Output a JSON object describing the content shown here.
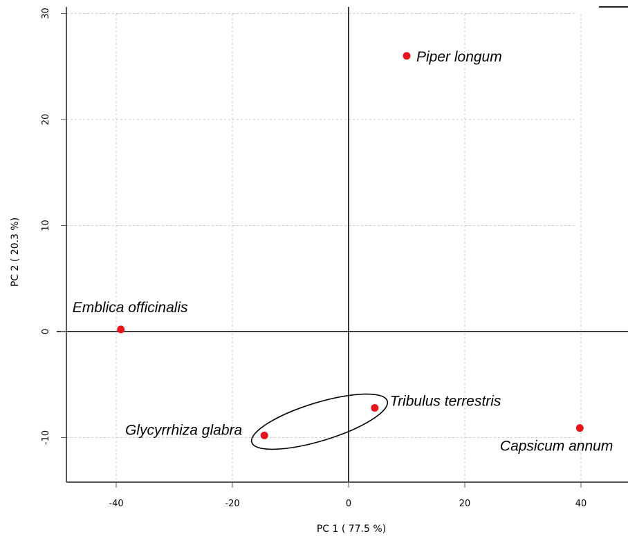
{
  "chart_data": {
    "type": "scatter",
    "xlabel": "PC 1 ( 77.5 %)",
    "ylabel": "PC 2 ( 20.3 %)",
    "xlim": [
      -48,
      48
    ],
    "ylim": [
      -14,
      31
    ],
    "xticks": [
      -40,
      -20,
      0,
      20,
      40
    ],
    "yticks": [
      -10,
      0,
      10,
      20,
      30
    ],
    "grid": true,
    "reference_lines": {
      "x": 0,
      "y": 0
    },
    "marker_color": "#e8141a",
    "points": [
      {
        "label": "Piper longum",
        "x": 10.0,
        "y": 26.0
      },
      {
        "label": "Emblica officinalis",
        "x": -39.2,
        "y": 0.2
      },
      {
        "label": "Tribulus terrestris",
        "x": 4.5,
        "y": -7.2
      },
      {
        "label": "Glycyrrhiza glabra",
        "x": -14.5,
        "y": -9.8
      },
      {
        "label": "Capsicum annum",
        "x": 39.8,
        "y": -9.1
      }
    ],
    "ellipse": {
      "center": [
        -5.0,
        -8.5
      ],
      "semi_axes": [
        12.2,
        1.8
      ],
      "angle_deg": 17
    }
  }
}
